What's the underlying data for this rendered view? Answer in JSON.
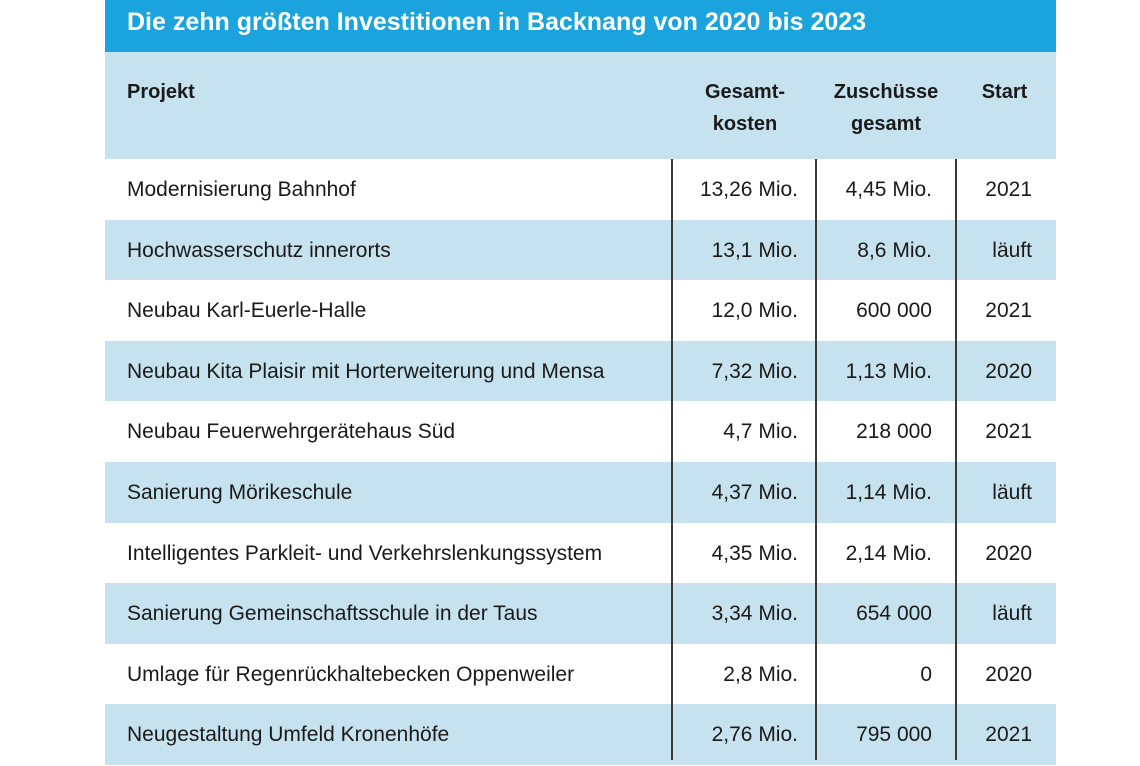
{
  "title": "Die zehn größten Investitionen in Backnang von 2020 bis 2023",
  "headers": {
    "project": "Projekt",
    "cost_line1": "Gesamt-",
    "cost_line2": "kosten",
    "grants_line1": "Zuschüsse",
    "grants_line2": "gesamt",
    "start": "Start"
  },
  "rows": [
    {
      "project": "Modernisierung Bahnhof",
      "cost": "13,26 Mio.",
      "grants": "4,45 Mio.",
      "start": "2021"
    },
    {
      "project": "Hochwasserschutz innerorts",
      "cost": "13,1 Mio.",
      "grants": "8,6 Mio.",
      "start": "läuft"
    },
    {
      "project": "Neubau Karl-Euerle-Halle",
      "cost": "12,0 Mio.",
      "grants": "600 000",
      "start": "2021"
    },
    {
      "project": "Neubau Kita Plaisir mit Horterweiterung und Mensa",
      "cost": "7,32 Mio.",
      "grants": "1,13 Mio.",
      "start": "2020"
    },
    {
      "project": "Neubau Feuerwehrgerätehaus Süd",
      "cost": "4,7 Mio.",
      "grants": "218 000",
      "start": "2021"
    },
    {
      "project": "Sanierung Mörikeschule",
      "cost": "4,37 Mio.",
      "grants": "1,14 Mio.",
      "start": "läuft"
    },
    {
      "project": "Intelligentes Parkleit- und Verkehrslenkungssystem",
      "cost": "4,35 Mio.",
      "grants": "2,14 Mio.",
      "start": "2020"
    },
    {
      "project": "Sanierung Gemeinschaftsschule in der Taus",
      "cost": "3,34 Mio.",
      "grants": "654 000",
      "start": "läuft"
    },
    {
      "project": "Umlage für Regenrückhaltebecken Oppenweiler",
      "cost": "2,8 Mio.",
      "grants": "0",
      "start": "2020"
    },
    {
      "project": "Neugestaltung Umfeld Kronenhöfe",
      "cost": "2,76 Mio.",
      "grants": "795 000",
      "start": "2021"
    }
  ],
  "colors": {
    "title_bg": "#1aa3dc",
    "header_bg": "#c6e2ef",
    "stripe_bg": "#c6e2ef",
    "rule": "#3a3a3a"
  }
}
